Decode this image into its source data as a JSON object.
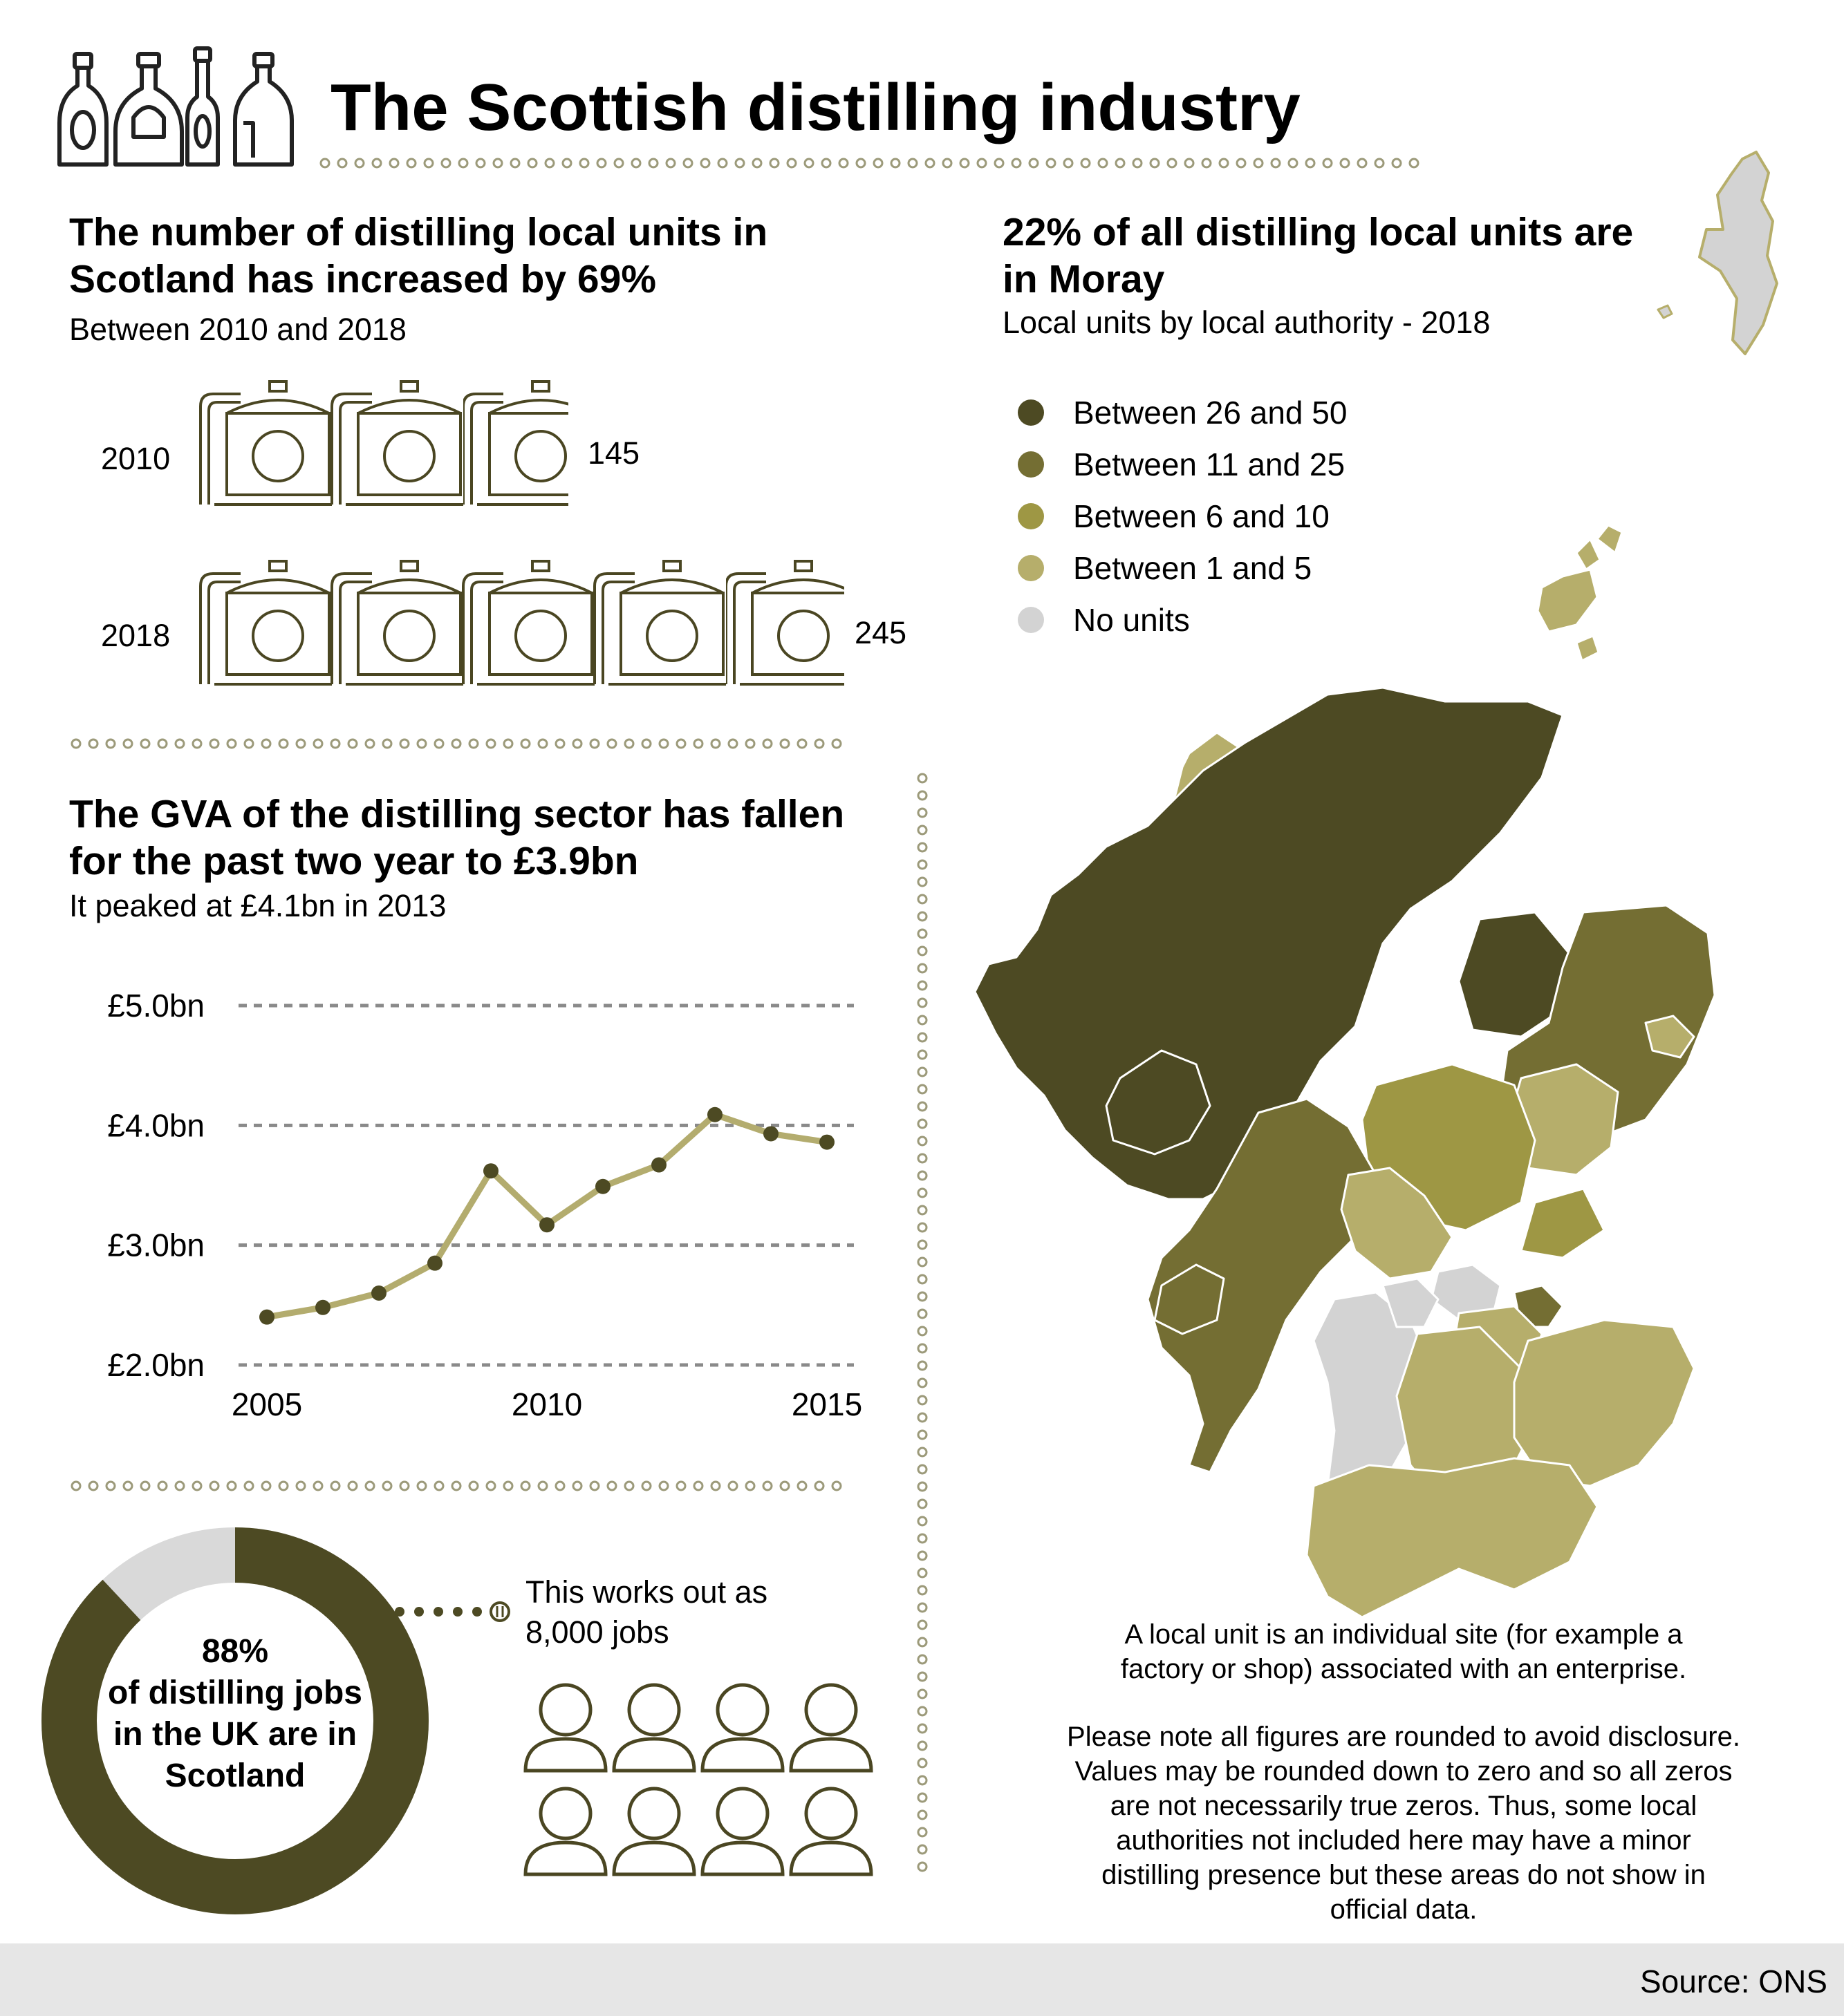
{
  "colors": {
    "darkest": "#4d4a23",
    "dark": "#746e33",
    "mid": "#9e9744",
    "light": "#b6ae6b",
    "none": "#d3d3d3",
    "line": "#b3ac6e",
    "donut_dark": "#4d4a23",
    "donut_light": "#d9d9d9",
    "icon_stroke": "#4a4622",
    "dots": "#9c9a7a"
  },
  "title": "The Scottish distilling industry",
  "units_section": {
    "heading_line1": "The number of distilling local units in",
    "heading_line2": "Scotland has increased by 69%",
    "subheading": "Between 2010 and 2018",
    "rows": [
      {
        "year": "2010",
        "value": "145",
        "stills": 2.8
      },
      {
        "year": "2018",
        "value": "245",
        "stills": 4.9
      }
    ]
  },
  "gva_section": {
    "heading_line1": "The GVA of the distilling sector has fallen",
    "heading_line2": "for the past two year to £3.9bn",
    "subheading": "It peaked at £4.1bn in 2013"
  },
  "chart_data": {
    "type": "line",
    "x": [
      2005,
      2006,
      2007,
      2008,
      2009,
      2010,
      2011,
      2012,
      2013,
      2014,
      2015
    ],
    "series": [
      {
        "values": [
          2.4,
          2.48,
          2.6,
          2.85,
          3.62,
          3.17,
          3.49,
          3.67,
          4.09,
          3.93,
          3.86
        ]
      }
    ],
    "xlim": [
      2005,
      2015
    ],
    "ylim": [
      2.0,
      5.0
    ],
    "yticks": [
      {
        "value": 5.0,
        "label": "£5.0bn"
      },
      {
        "value": 4.0,
        "label": "£4.0bn"
      },
      {
        "value": 3.0,
        "label": "£3.0bn"
      },
      {
        "value": 2.0,
        "label": "£2.0bn"
      }
    ],
    "xticks": [
      {
        "value": 2005,
        "label": "2005"
      },
      {
        "value": 2010,
        "label": "2010"
      },
      {
        "value": 2015,
        "label": "2015"
      }
    ],
    "grid": true
  },
  "jobs_section": {
    "percent_label": "88%",
    "percent_value": 0.88,
    "caption_line1": "of distilling jobs",
    "caption_line2": "in the UK are in",
    "caption_line3": "Scotland",
    "works_out_line1": "This works out as",
    "works_out_line2": "8,000 jobs",
    "people_count": 8
  },
  "map_section": {
    "heading_line1": "22% of all distilling local units are",
    "heading_line2": "in Moray",
    "subheading": "Local units by local authority - 2018",
    "legend": [
      {
        "label": "Between 26 and 50",
        "color": "#4d4a23"
      },
      {
        "label": "Between 11 and 25",
        "color": "#746e33"
      },
      {
        "label": "Between 6 and 10",
        "color": "#9e9744"
      },
      {
        "label": "Between 1 and 5",
        "color": "#b6ae6b"
      },
      {
        "label": "No units",
        "color": "#d3d3d3"
      }
    ],
    "note1_line1": "A local unit is an individual site (for example a",
    "note1_line2": "factory or shop) associated with an enterprise.",
    "note2_line1": "Please note all figures are rounded to avoid disclosure.",
    "note2_line2": "Values may be rounded down to zero and so all zeros",
    "note2_line3": "are not necessarily true zeros. Thus, some local",
    "note2_line4": "authorities not included here may have a minor",
    "note2_line5": "distilling presence but these areas do not show in",
    "note2_line6": "official data."
  },
  "source": "Source: ONS"
}
